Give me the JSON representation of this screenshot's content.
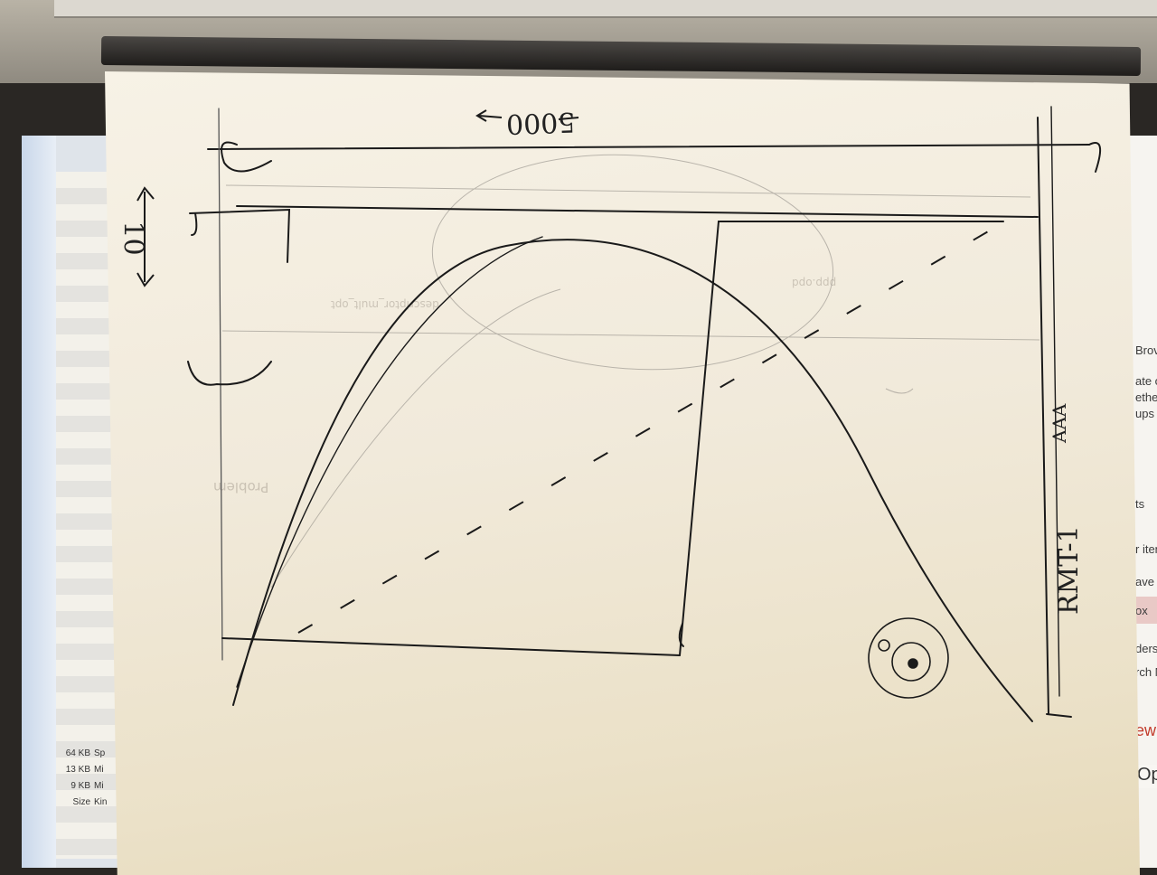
{
  "sketch": {
    "handwritten_labels": {
      "width_label": "5000",
      "height_label": "10",
      "vertical_label": "RMT-1",
      "side_note": "AAA"
    },
    "ghost_text_through_paper": [
      "Problem",
      "descriptor_mult_opt",
      "ppp.opd"
    ]
  },
  "background_screen": {
    "left_file_list": [
      {
        "size": "64 KB",
        "kind": "Sp"
      },
      {
        "size": "13 KB",
        "kind": "Mi"
      },
      {
        "size": "9 KB",
        "kind": "Mi"
      },
      {
        "size": "Size",
        "kind": "Kin"
      }
    ],
    "right_partial_text": [
      "Brov",
      "ups b",
      "ether",
      "ate o",
      "ts",
      "r item",
      "ave",
      "ox",
      "ders",
      "rch M",
      "ew",
      "Op"
    ]
  },
  "colors": {
    "ink": "#1a1a1a",
    "pencil": "#8a8680",
    "paper": "#f3ecdd"
  }
}
